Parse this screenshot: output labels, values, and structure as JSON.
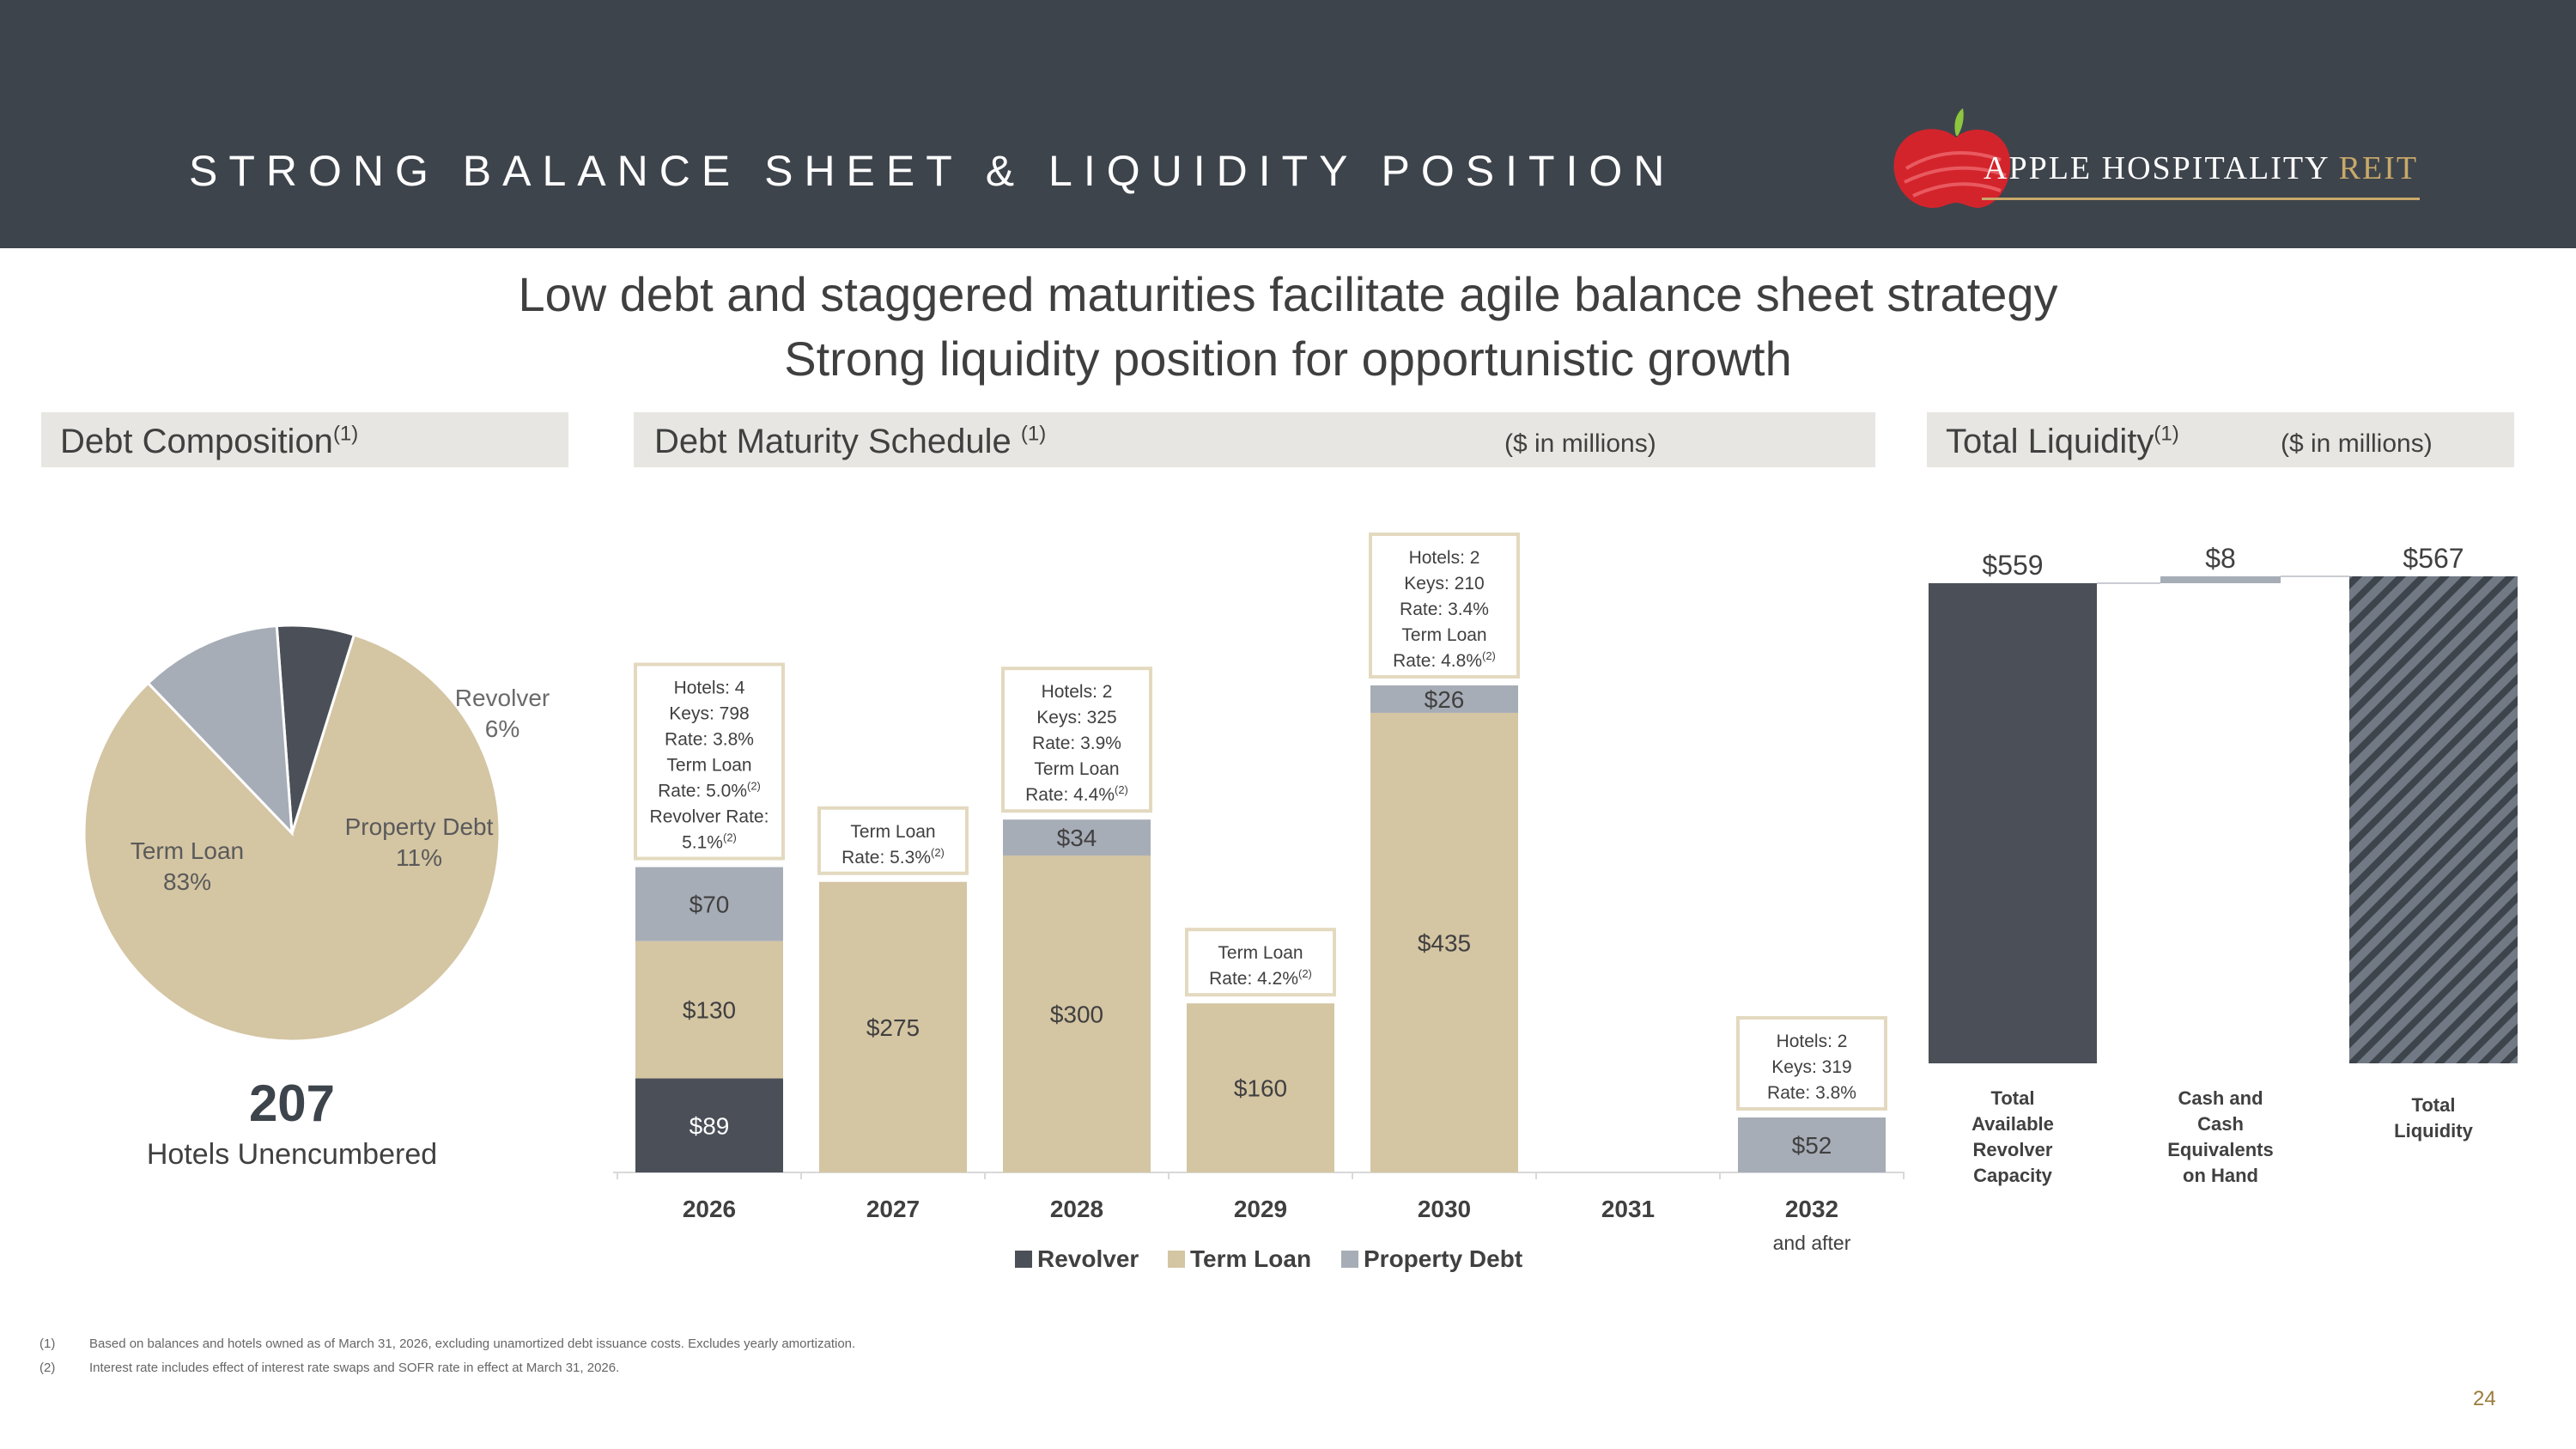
{
  "header": {
    "title": "STRONG BALANCE SHEET & LIQUIDITY POSITION",
    "brand_main": "APPLE HOSPITALITY ",
    "brand_accent": "REIT",
    "logo_icon": "apple-icon",
    "colors": {
      "header_bg": "#3e444c",
      "accent": "#c8a969",
      "logo_red": "#d3242c",
      "logo_leaf": "#8dc63f"
    }
  },
  "headline": {
    "line1": "Low debt and staggered maturities facilitate agile balance sheet strategy",
    "line2": "Strong liquidity position for opportunistic growth"
  },
  "panels": {
    "debt_composition": {
      "title": "Debt Composition",
      "sup": "(1)"
    },
    "maturity": {
      "title": "Debt Maturity Schedule ",
      "sup": "(1)",
      "units": "($ in millions)"
    },
    "liquidity": {
      "title": "Total Liquidity",
      "sup": "(1)",
      "units": "($ in millions)"
    }
  },
  "unencumbered": {
    "count": "207",
    "label": "Hotels Unencumbered"
  },
  "footnotes": [
    {
      "num": "(1)",
      "text": "Based on balances and hotels owned as of March 31, 2026, excluding unamortized debt issuance costs. Excludes yearly amortization."
    },
    {
      "num": "(2)",
      "text": "Interest rate includes effect of interest rate swaps and SOFR rate in effect at March 31, 2026."
    }
  ],
  "page_number": "24",
  "chart_data": [
    {
      "type": "pie",
      "title": "",
      "slices": [
        {
          "name": "Term Loan",
          "value": 83,
          "label": "83%",
          "color": "#d4c5a3"
        },
        {
          "name": "Revolver",
          "value": 6,
          "label": "6%",
          "color": "#4a4f58"
        },
        {
          "name": "Property Debt",
          "value": 11,
          "label": "11%",
          "color": "#a7adb7"
        }
      ]
    },
    {
      "type": "bar",
      "stacked": true,
      "title": "",
      "categories": [
        "2026",
        "2027",
        "2028",
        "2029",
        "2030",
        "2031",
        "2032"
      ],
      "category_sublabels": [
        "",
        "",
        "",
        "",
        "",
        "",
        "and after"
      ],
      "ylim": [
        0,
        600
      ],
      "series": [
        {
          "name": "Revolver",
          "color": "#4a4f58",
          "values": [
            89,
            0,
            0,
            0,
            0,
            0,
            0
          ],
          "labels": [
            "$89",
            "",
            "",
            "",
            "",
            "",
            ""
          ]
        },
        {
          "name": "Term Loan",
          "color": "#d4c5a3",
          "values": [
            130,
            275,
            300,
            160,
            435,
            0,
            0
          ],
          "labels": [
            "$130",
            "$275",
            "$300",
            "$160",
            "$435",
            "",
            ""
          ]
        },
        {
          "name": "Property Debt",
          "color": "#a7adb7",
          "values": [
            70,
            0,
            34,
            0,
            26,
            0,
            52
          ],
          "labels": [
            "$70",
            "",
            "$34",
            "",
            "$26",
            "",
            "$52"
          ]
        }
      ],
      "annotations": [
        {
          "category": "2026",
          "lines": [
            [
              "Hotels: 4",
              ""
            ],
            [
              "Keys: 798",
              ""
            ],
            [
              "Rate: 3.8%",
              ""
            ],
            [
              "Term Loan",
              ""
            ],
            [
              "Rate: 5.0%",
              "(2)"
            ],
            [
              "Revolver Rate:",
              ""
            ],
            [
              "5.1%",
              "(2)"
            ]
          ]
        },
        {
          "category": "2027",
          "lines": [
            [
              "Term Loan",
              ""
            ],
            [
              "Rate: 5.3%",
              "(2)"
            ]
          ]
        },
        {
          "category": "2028",
          "lines": [
            [
              "Hotels: 2",
              ""
            ],
            [
              "Keys: 325",
              ""
            ],
            [
              "Rate: 3.9%",
              ""
            ],
            [
              "Term Loan",
              ""
            ],
            [
              "Rate: 4.4%",
              "(2)"
            ]
          ]
        },
        {
          "category": "2029",
          "lines": [
            [
              "Term Loan",
              ""
            ],
            [
              "Rate: 4.2%",
              "(2)"
            ]
          ]
        },
        {
          "category": "2030",
          "lines": [
            [
              "Hotels: 2",
              ""
            ],
            [
              "Keys: 210",
              ""
            ],
            [
              "Rate: 3.4%",
              ""
            ],
            [
              "Term Loan",
              ""
            ],
            [
              "Rate: 4.8%",
              "(2)"
            ]
          ]
        },
        {
          "category": "2032",
          "lines": [
            [
              "Hotels: 2",
              ""
            ],
            [
              "Keys: 319",
              ""
            ],
            [
              "Rate: 3.8%",
              ""
            ]
          ]
        }
      ],
      "legend": {
        "position": "bottom",
        "items": [
          "Revolver",
          "Term Loan",
          "Property Debt"
        ]
      }
    },
    {
      "type": "bar",
      "subtype": "waterfall",
      "title": "",
      "ylim": [
        0,
        600
      ],
      "bars": [
        {
          "label_lines": [
            "Total",
            "Available",
            "Revolver",
            "Capacity"
          ],
          "value": 559,
          "value_label": "$559",
          "base": 0,
          "color": "#4a4f58"
        },
        {
          "label_lines": [
            "Cash and",
            "Cash",
            "Equivalents",
            "on Hand"
          ],
          "value": 8,
          "value_label": "$8",
          "base": 559,
          "color": "#a7adb7"
        },
        {
          "label_lines": [
            "Total",
            "Liquidity"
          ],
          "value": 567,
          "value_label": "$567",
          "base": 0,
          "color": "#717985",
          "pattern": "diagonal-hatch"
        }
      ]
    }
  ]
}
